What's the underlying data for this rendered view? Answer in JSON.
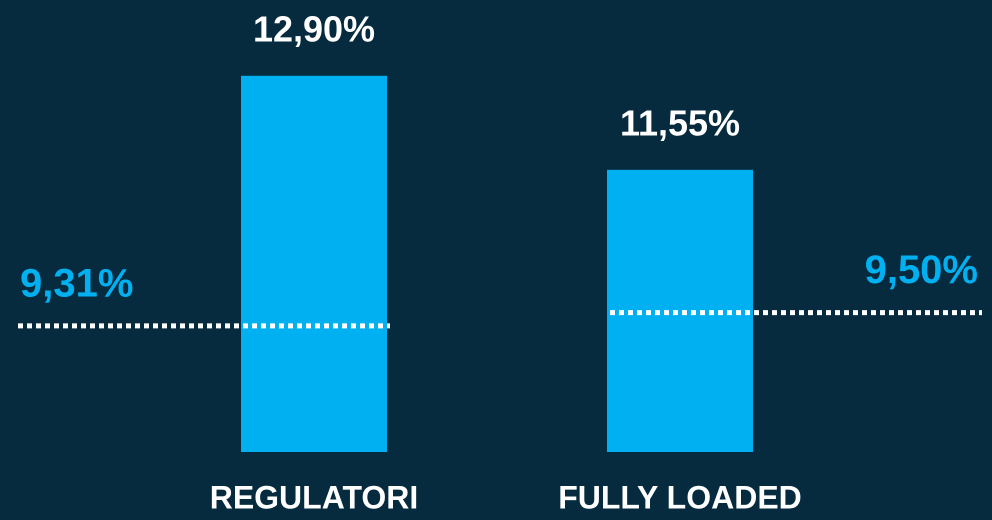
{
  "chart_data": {
    "type": "bar",
    "categories": [
      "REGULATORI",
      "FULLY LOADED"
    ],
    "values": [
      12.9,
      11.55
    ],
    "value_labels": [
      "12,90%",
      "11,55%"
    ],
    "color": "#00b0f0",
    "reference_values": [
      9.31,
      9.5
    ],
    "reference_labels": [
      "9,31%",
      "9,50%"
    ],
    "reference_color": "#ffffff",
    "reference_label_color": "#00b0f0",
    "ylim": [
      7.5,
      13.5
    ]
  }
}
